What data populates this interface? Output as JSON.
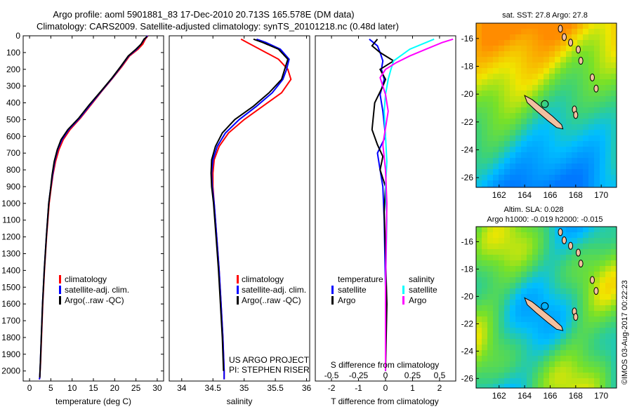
{
  "title": {
    "line1": "Argo profile: aoml 5901881_83 17-Dec-2010 20.713S 165.578E (DM data)",
    "line2": "Climatology: CARS2009. Satellite-adjusted climatology: synTS_20101218.nc (0.48d later)"
  },
  "colors": {
    "climatology": "#ff0000",
    "satellite": "#0000ff",
    "argo": "#000000",
    "argo_salinity_diff": "#ff00ff",
    "satellite_salinity_diff": "#00ffff",
    "land": "#f2c0a0"
  },
  "depth_axis": {
    "ylim": [
      0,
      2060
    ],
    "ticks": [
      0,
      100,
      200,
      300,
      400,
      500,
      600,
      700,
      800,
      900,
      1000,
      1100,
      1200,
      1300,
      1400,
      1500,
      1600,
      1700,
      1800,
      1900,
      2000
    ]
  },
  "panels": {
    "temperature": {
      "xlabel": "temperature (deg C)",
      "xlim": [
        -1.5,
        31.5
      ],
      "xticks": [
        0,
        5,
        10,
        15,
        20,
        25,
        30
      ],
      "legend": [
        "climatology",
        "satellite-adj. clim.",
        "Argo(..raw -QC)"
      ]
    },
    "salinity": {
      "xlabel": "salinity",
      "xlim": [
        33.8,
        36.05
      ],
      "xticks": [
        34,
        34.5,
        35,
        35.5,
        36
      ],
      "legend": [
        "climatology",
        "satellite-adj. clim.",
        "Argo(..raw -QC)"
      ],
      "credit": [
        "US ARGO PROJECT",
        "PI: STEPHEN RISER"
      ]
    },
    "difference": {
      "xlabel": "T difference from climatology",
      "xlabel_top": "S difference from climatology",
      "t_xlim": [
        -2.6,
        2.6
      ],
      "t_xticks": [
        -2,
        -1,
        0,
        1,
        2
      ],
      "s_xticks": [
        -0.5,
        -0.25,
        0,
        0.25,
        0.5
      ],
      "legend_temperature": {
        "heading": "temperature",
        "items": [
          "satellite",
          "Argo"
        ]
      },
      "legend_salinity": {
        "heading": "salinity",
        "items": [
          "satellite",
          "Argo"
        ]
      }
    },
    "sst_map": {
      "title": "sat. SST: 27.8 Argo: 27.8",
      "xlim": [
        160.2,
        171.2
      ],
      "ylim": [
        -26.7,
        -14.9
      ],
      "xticks": [
        162,
        164,
        166,
        168,
        170
      ],
      "yticks": [
        -16,
        -18,
        -20,
        -22,
        -24,
        -26
      ],
      "argo_position": [
        165.578,
        -20.713
      ]
    },
    "sla_map": {
      "title_line1": "Altim. SLA: 0.028",
      "title_line2": "Argo h1000: -0.019 h2000: -0.015",
      "xlim": [
        160.2,
        171.2
      ],
      "ylim": [
        -26.7,
        -14.9
      ],
      "xticks": [
        162,
        164,
        166,
        168,
        170
      ],
      "yticks": [
        -16,
        -18,
        -20,
        -22,
        -24,
        -26
      ],
      "argo_position": [
        165.578,
        -20.713
      ]
    }
  },
  "footer": "©IMOS 03-Aug-2017 00:22:23",
  "chart_data": [
    {
      "type": "line",
      "title": "",
      "xlabel": "temperature (deg C)",
      "ylabel": "",
      "xlim": [
        -1.5,
        31.5
      ],
      "ylim": [
        2060,
        0
      ],
      "series": [
        {
          "name": "climatology",
          "color": "#ff0000",
          "x": [
            27.8,
            27.2,
            26.6,
            25.5,
            23.5,
            21.8,
            19.6,
            17.0,
            14.5,
            12.0,
            9.5,
            7.9,
            6.9,
            6.1,
            5.5,
            5.0,
            4.6,
            4.0,
            3.5,
            3.1,
            2.8,
            2.6,
            2.4,
            2.3
          ],
          "y": [
            0,
            20,
            50,
            80,
            120,
            180,
            250,
            330,
            410,
            490,
            560,
            620,
            680,
            750,
            830,
            920,
            1000,
            1200,
            1400,
            1600,
            1800,
            1950,
            2040,
            2050
          ]
        },
        {
          "name": "satellite-adj. clim.",
          "color": "#0000ff",
          "x": [
            27.7,
            27.0,
            26.2,
            25.2,
            23.3,
            21.6,
            19.5,
            16.9,
            14.3,
            11.8,
            9.2,
            7.6,
            6.6,
            5.9,
            5.4,
            4.9,
            4.5,
            3.95,
            3.45,
            3.05,
            2.75,
            2.55,
            2.4,
            2.3
          ],
          "y": [
            0,
            20,
            50,
            80,
            120,
            180,
            250,
            330,
            410,
            490,
            560,
            620,
            680,
            750,
            830,
            920,
            1000,
            1200,
            1400,
            1600,
            1800,
            1950,
            2040,
            2050
          ]
        },
        {
          "name": "Argo(..raw -QC)",
          "color": "#000000",
          "x": [
            27.6,
            26.9,
            26.2,
            25.0,
            23.2,
            21.5,
            19.4,
            16.8,
            14.1,
            11.6,
            9.0,
            7.4,
            6.5,
            5.8,
            5.3,
            4.9,
            4.5,
            3.95,
            3.45,
            3.05,
            2.75,
            2.55,
            2.4
          ],
          "y": [
            5,
            20,
            50,
            80,
            120,
            180,
            250,
            330,
            410,
            490,
            560,
            620,
            680,
            750,
            830,
            920,
            1000,
            1200,
            1400,
            1600,
            1800,
            1950,
            2040
          ]
        }
      ]
    },
    {
      "type": "line",
      "title": "",
      "xlabel": "salinity",
      "ylabel": "",
      "xlim": [
        33.8,
        36.05
      ],
      "ylim": [
        2060,
        0
      ],
      "series": [
        {
          "name": "climatology",
          "color": "#ff0000",
          "x": [
            34.95,
            35.05,
            35.25,
            35.55,
            35.7,
            35.75,
            35.6,
            35.3,
            35.0,
            34.75,
            34.6,
            34.52,
            34.5,
            34.5,
            34.52,
            34.56,
            34.6,
            34.63,
            34.66,
            34.68,
            34.68
          ],
          "y": [
            20,
            40,
            80,
            140,
            200,
            260,
            340,
            420,
            500,
            580,
            660,
            740,
            820,
            900,
            1000,
            1200,
            1400,
            1600,
            1800,
            2000,
            2050
          ]
        },
        {
          "name": "satellite-adj. clim.",
          "color": "#0000ff",
          "x": [
            35.2,
            35.35,
            35.58,
            35.72,
            35.68,
            35.62,
            35.45,
            35.2,
            34.92,
            34.7,
            34.57,
            34.5,
            34.48,
            34.49,
            34.52,
            34.56,
            34.6,
            34.63,
            34.66,
            34.68,
            34.68
          ],
          "y": [
            20,
            40,
            80,
            140,
            200,
            260,
            340,
            420,
            500,
            580,
            660,
            740,
            820,
            900,
            1000,
            1200,
            1400,
            1600,
            1800,
            2000,
            2050
          ]
        },
        {
          "name": "Argo(..raw -QC)",
          "color": "#000000",
          "x": [
            35.15,
            35.3,
            35.55,
            35.7,
            35.65,
            35.6,
            35.4,
            35.15,
            34.85,
            34.65,
            34.54,
            34.48,
            34.47,
            34.48,
            34.51,
            34.55,
            34.59,
            34.62,
            34.65,
            34.67
          ],
          "y": [
            20,
            40,
            80,
            140,
            200,
            260,
            340,
            420,
            500,
            580,
            660,
            740,
            820,
            900,
            1000,
            1200,
            1400,
            1600,
            1800,
            2000
          ]
        }
      ]
    },
    {
      "type": "line",
      "title": "",
      "xlabel": "T difference from climatology",
      "ylabel": "",
      "xlim": [
        -2.6,
        2.6
      ],
      "ylim": [
        2060,
        0
      ],
      "series": [
        {
          "name": "temperature satellite",
          "color": "#0000ff",
          "x": [
            -0.6,
            -0.3,
            -0.2,
            -0.1,
            -0.15,
            -0.05,
            -0.2,
            -0.1,
            0.0,
            -0.3,
            -0.2,
            -0.1,
            -0.05,
            0.0,
            0.0
          ],
          "y": [
            20,
            60,
            100,
            150,
            200,
            260,
            350,
            450,
            600,
            700,
            800,
            900,
            1100,
            1500,
            2000
          ]
        },
        {
          "name": "temperature Argo",
          "color": "#000000",
          "x": [
            -0.3,
            -0.5,
            -0.2,
            0.3,
            -0.2,
            0.0,
            -0.1,
            -0.4,
            -0.5,
            -0.3,
            -0.1,
            -0.2,
            0.0,
            -0.05,
            0.0,
            0.05,
            0.0
          ],
          "y": [
            20,
            60,
            100,
            150,
            200,
            260,
            300,
            400,
            560,
            650,
            720,
            800,
            900,
            1050,
            1300,
            1600,
            2000
          ]
        },
        {
          "name": "salinity satellite",
          "color": "#00ffff",
          "x": [
            1.8,
            1.5,
            0.9,
            0.3,
            0.2,
            0.1,
            0.0,
            -0.05,
            0.0,
            0.05,
            0.0,
            0.05,
            0.0,
            0.0
          ],
          "y": [
            20,
            40,
            80,
            150,
            200,
            260,
            350,
            450,
            600,
            750,
            900,
            1100,
            1500,
            2000
          ]
        },
        {
          "name": "salinity Argo",
          "color": "#ff00ff",
          "x": [
            2.5,
            2.1,
            1.5,
            0.9,
            0.4,
            0.0,
            -0.2,
            0.0,
            0.1,
            0.0,
            -0.1,
            0.0,
            0.05,
            0.0,
            0.0
          ],
          "y": [
            20,
            40,
            80,
            120,
            160,
            200,
            250,
            350,
            450,
            550,
            650,
            800,
            1000,
            1500,
            2000
          ]
        }
      ]
    }
  ]
}
